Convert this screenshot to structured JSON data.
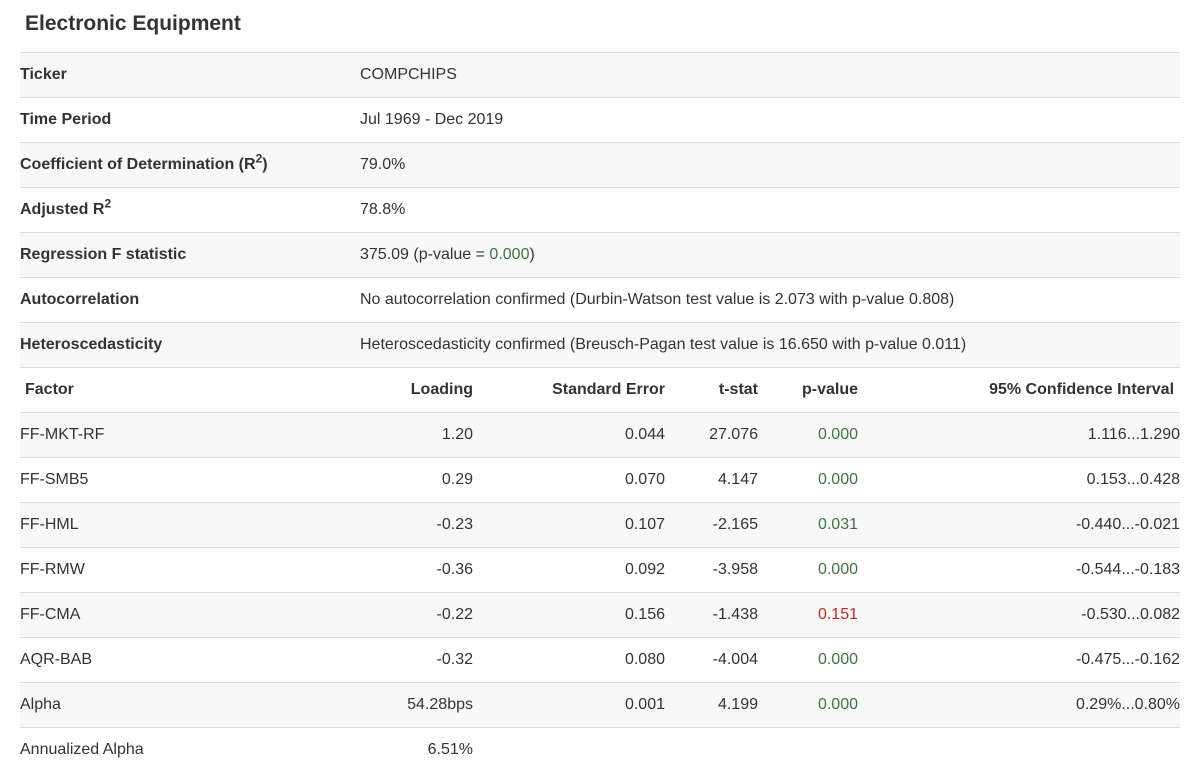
{
  "page": {
    "title": "Electronic Equipment"
  },
  "colors": {
    "significant_green": "#3c763d",
    "insignificant_red": "#c62828",
    "text": "#333333",
    "stripe": "#f8f8f8",
    "border": "#dddddd"
  },
  "summary_rows": [
    {
      "label": "Ticker",
      "value": "COMPCHIPS"
    },
    {
      "label": "Time Period",
      "value": "Jul 1969 - Dec 2019"
    },
    {
      "label": "Coefficient of Determination (R",
      "label_sup": "2",
      "label_end": ")",
      "value": "79.0%"
    },
    {
      "label": "Adjusted R",
      "label_sup": "2",
      "value": "78.8%"
    },
    {
      "label": "Regression F statistic",
      "value": "375.09 (p-value = ",
      "value_highlight": "0.000",
      "value_highlight_color": "#3c763d",
      "value_end": ")"
    },
    {
      "label": "Autocorrelation",
      "value": "No autocorrelation confirmed (Durbin-Watson test value is 2.073 with p-value 0.808)"
    },
    {
      "label": "Heteroscedasticity",
      "value": "Heteroscedasticity confirmed (Breusch-Pagan test value is 16.650 with p-value 0.011)"
    }
  ],
  "factor_table": {
    "header": {
      "factor": "Factor",
      "loading": "Loading",
      "std_error": "Standard Error",
      "t_stat": "t-stat",
      "p_value": "p-value",
      "ci": "95% Confidence Interval"
    },
    "rows": [
      {
        "factor": "FF-MKT-RF",
        "loading": "1.20",
        "std_error": "0.044",
        "t_stat": "27.076",
        "p_value": "0.000",
        "p_value_color": "#3c763d",
        "ci": "1.116...1.290"
      },
      {
        "factor": "FF-SMB5",
        "loading": "0.29",
        "std_error": "0.070",
        "t_stat": "4.147",
        "p_value": "0.000",
        "p_value_color": "#3c763d",
        "ci": "0.153...0.428"
      },
      {
        "factor": "FF-HML",
        "loading": "-0.23",
        "std_error": "0.107",
        "t_stat": "-2.165",
        "p_value": "0.031",
        "p_value_color": "#3c763d",
        "ci": "-0.440...-0.021"
      },
      {
        "factor": "FF-RMW",
        "loading": "-0.36",
        "std_error": "0.092",
        "t_stat": "-3.958",
        "p_value": "0.000",
        "p_value_color": "#3c763d",
        "ci": "-0.544...-0.183"
      },
      {
        "factor": "FF-CMA",
        "loading": "-0.22",
        "std_error": "0.156",
        "t_stat": "-1.438",
        "p_value": "0.151",
        "p_value_color": "#c62828",
        "ci": "-0.530...0.082"
      },
      {
        "factor": "AQR-BAB",
        "loading": "-0.32",
        "std_error": "0.080",
        "t_stat": "-4.004",
        "p_value": "0.000",
        "p_value_color": "#3c763d",
        "ci": "-0.475...-0.162"
      },
      {
        "factor": "Alpha",
        "loading": "54.28bps",
        "std_error": "0.001",
        "t_stat": "4.199",
        "p_value": "0.000",
        "p_value_color": "#3c763d",
        "ci": "0.29%...0.80%"
      },
      {
        "factor": "Annualized Alpha",
        "loading": "6.51%"
      }
    ]
  }
}
